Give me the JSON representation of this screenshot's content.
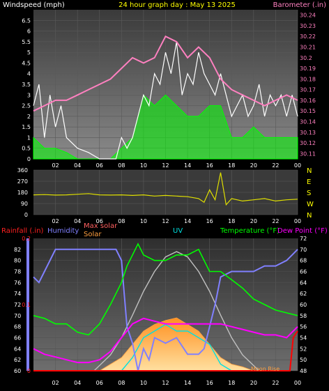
{
  "header": {
    "left_label": "Windspeed (mph)",
    "center_label": "24 hour graph day : May 13 2025",
    "right_label": "Barometer (.in)"
  },
  "colors": {
    "wind": "#ffffff",
    "gust": "#00ff00",
    "barometer": "#ff80c0",
    "direction": "#e0e000",
    "humidity": "#8080ff",
    "temperature": "#00ff00",
    "dewpoint": "#ff00ff",
    "uv": "#00e0e0",
    "rain": "#ff0000",
    "solar_max": "#c0c0c0",
    "solar": "#ffa040"
  },
  "chart_data": [
    {
      "type": "line",
      "name": "wind-barometer",
      "x_ticks": [
        "02",
        "04",
        "06",
        "08",
        "10",
        "12",
        "14",
        "16",
        "18",
        "20",
        "22",
        "00"
      ],
      "x_range": [
        0,
        24
      ],
      "left_axis": {
        "label": "Windspeed (mph)",
        "range": [
          0,
          7
        ],
        "ticks": [
          "0",
          "0.5",
          "1",
          "1.5",
          "2",
          "2.5",
          "3",
          "3.5",
          "4",
          "4.5",
          "5",
          "5.5",
          "6",
          "6.5"
        ]
      },
      "right_axis": {
        "label": "Barometer (.in)",
        "range": [
          30.105,
          30.245
        ],
        "ticks": [
          "30.11",
          "30.12",
          "30.13",
          "30.14",
          "30.15",
          "30.16",
          "30.17",
          "30.18",
          "30.19",
          "30.2",
          "30.21",
          "30.22",
          "30.23",
          "30.24"
        ]
      },
      "series": [
        {
          "name": "Windspeed",
          "x": [
            0,
            0.5,
            1,
            1.5,
            2,
            2.5,
            3,
            4,
            5,
            6,
            7,
            7.5,
            8,
            8.5,
            9,
            9.5,
            10,
            10.5,
            11,
            11.5,
            12,
            12.5,
            13,
            13.5,
            14,
            14.5,
            15,
            15.5,
            16,
            16.5,
            17,
            17.5,
            18,
            18.5,
            19,
            19.5,
            20,
            20.5,
            21,
            21.5,
            22,
            22.5,
            23,
            23.5,
            24
          ],
          "y": [
            2.5,
            3.5,
            1,
            3,
            1.5,
            2.5,
            1,
            0.5,
            0.3,
            0,
            0,
            0,
            1,
            0.5,
            1,
            2,
            3,
            2.5,
            4,
            3.5,
            5,
            4,
            5.5,
            3,
            4,
            3.5,
            5,
            4,
            3.5,
            3,
            4,
            3,
            2,
            2.5,
            3,
            2,
            2.5,
            3.5,
            2,
            3,
            2.5,
            3,
            2,
            3,
            2
          ]
        },
        {
          "name": "Gust",
          "x": [
            0,
            1,
            2,
            3,
            4,
            5,
            6,
            7,
            8,
            9,
            10,
            11,
            12,
            13,
            14,
            15,
            16,
            17,
            18,
            19,
            20,
            21,
            22,
            23,
            24
          ],
          "y": [
            1,
            0.5,
            0.5,
            0.3,
            0,
            0,
            0,
            0,
            0.5,
            1,
            3,
            2.5,
            3,
            2.5,
            2,
            2,
            2.5,
            2.5,
            1,
            1,
            1.5,
            1,
            1,
            1,
            1
          ]
        },
        {
          "name": "Barometer",
          "x": [
            0,
            1,
            2,
            3,
            4,
            5,
            6,
            7,
            8,
            9,
            10,
            11,
            12,
            13,
            14,
            15,
            16,
            17,
            18,
            19,
            20,
            21,
            22,
            23,
            24
          ],
          "y": [
            30.15,
            30.155,
            30.16,
            30.16,
            30.165,
            30.17,
            30.175,
            30.18,
            30.19,
            30.2,
            30.195,
            30.2,
            30.22,
            30.215,
            30.2,
            30.21,
            30.2,
            30.18,
            30.17,
            30.165,
            30.16,
            30.155,
            30.16,
            30.165,
            30.16
          ]
        }
      ]
    },
    {
      "type": "line",
      "name": "wind-direction",
      "x_ticks": [
        "02",
        "04",
        "06",
        "08",
        "10",
        "12",
        "14",
        "16",
        "18",
        "20",
        "22",
        "00"
      ],
      "x_range": [
        0,
        24
      ],
      "left_axis": {
        "range": [
          0,
          360
        ],
        "ticks": [
          "0",
          "90",
          "180",
          "270",
          "360"
        ]
      },
      "right_axis": {
        "ticks": [
          "N",
          "W",
          "S",
          "E",
          "N"
        ]
      },
      "series": [
        {
          "name": "Wind direction",
          "x": [
            0,
            1,
            2,
            3,
            4,
            5,
            6,
            7,
            8,
            9,
            10,
            11,
            12,
            13,
            14,
            15,
            15.5,
            16,
            16.5,
            17,
            17.5,
            18,
            19,
            20,
            21,
            22,
            23,
            24
          ],
          "y": [
            160,
            162,
            158,
            160,
            165,
            170,
            160,
            158,
            160,
            155,
            160,
            150,
            155,
            150,
            145,
            130,
            100,
            200,
            120,
            340,
            80,
            130,
            110,
            120,
            130,
            110,
            120,
            125
          ]
        }
      ]
    },
    {
      "type": "line",
      "name": "temp-humidity-solar",
      "x_ticks": [
        "02",
        "04",
        "06",
        "08",
        "10",
        "12",
        "14",
        "16",
        "18",
        "20",
        "22",
        "00"
      ],
      "x_range": [
        0,
        24
      ],
      "legend": [
        "Rainfall (.in)",
        "Humidity",
        "Max solar",
        "Solar",
        "UV",
        "Temperature (°F)",
        "Dew Point (°F)"
      ],
      "left_axis": {
        "label": "Humidity",
        "range": [
          60,
          84
        ],
        "ticks": [
          "60",
          "62",
          "64",
          "66",
          "68",
          "70",
          "72",
          "74",
          "76",
          "78",
          "80",
          "82"
        ]
      },
      "rain_axis": {
        "label": "Rainfall (.in)",
        "range": [
          0,
          0.2
        ],
        "ticks": [
          "0",
          "0.1",
          "0.2"
        ]
      },
      "right_axis": {
        "label": "Temperature (°F)",
        "range": [
          48,
          72
        ],
        "ticks": [
          "48",
          "50",
          "52",
          "54",
          "56",
          "58",
          "60",
          "62",
          "64",
          "66",
          "68",
          "70",
          "72"
        ]
      },
      "annotation": "Moon Rise",
      "series": [
        {
          "name": "Humidity",
          "x": [
            0,
            0.5,
            1,
            1.5,
            2,
            3,
            4,
            5,
            6,
            7,
            7.5,
            8,
            8.2,
            8.5,
            9,
            9.5,
            10,
            10.5,
            11,
            12,
            13,
            14,
            15,
            15.5,
            16,
            16.5,
            17,
            18,
            19,
            20,
            21,
            22,
            23,
            23.5,
            24
          ],
          "y": [
            77,
            76,
            78,
            80,
            82,
            82,
            82,
            82,
            82,
            82,
            82,
            80,
            75,
            68,
            65,
            60,
            64,
            62,
            66,
            65,
            66,
            63,
            63,
            64,
            68,
            72,
            77,
            78,
            78,
            78,
            79,
            79,
            80,
            81,
            82
          ]
        },
        {
          "name": "Temperature (°F)",
          "x": [
            0,
            1,
            2,
            3,
            4,
            5,
            6,
            7,
            8,
            8.5,
            9,
            9.5,
            10,
            11,
            12,
            13,
            14,
            15,
            16,
            17,
            18,
            19,
            20,
            21,
            22,
            23,
            24
          ],
          "y": [
            58,
            57.5,
            56.5,
            56.5,
            55,
            54.5,
            56.5,
            60,
            64,
            67,
            69,
            71,
            69,
            68,
            68,
            69,
            69,
            70,
            66,
            66,
            64.5,
            63,
            61,
            60,
            59,
            58.5,
            58
          ]
        },
        {
          "name": "Dew Point (°F)",
          "x": [
            0,
            1,
            2,
            3,
            4,
            5,
            6,
            7,
            8,
            9,
            10,
            11,
            12,
            13,
            14,
            15,
            16,
            17,
            18,
            19,
            20,
            21,
            22,
            23,
            24
          ],
          "y": [
            52,
            51,
            50.5,
            50,
            49.5,
            49.5,
            50,
            51.5,
            54,
            56.5,
            57.5,
            57,
            56.5,
            56.5,
            56.5,
            56.5,
            56.5,
            56.5,
            56,
            55.5,
            55,
            54.5,
            54.5,
            54,
            56
          ]
        },
        {
          "name": "Max solar",
          "x": [
            5.5,
            7,
            8,
            9,
            10,
            11,
            12,
            13,
            14,
            15,
            16,
            17,
            18,
            19,
            20.5
          ],
          "y": [
            0,
            0.12,
            0.25,
            0.42,
            0.6,
            0.75,
            0.86,
            0.9,
            0.86,
            0.75,
            0.6,
            0.42,
            0.25,
            0.12,
            0
          ]
        },
        {
          "name": "Solar",
          "x": [
            6,
            7,
            8,
            9,
            10,
            11,
            12,
            13,
            14,
            15,
            16,
            17,
            18,
            19,
            20
          ],
          "y": [
            0,
            0.05,
            0.1,
            0.2,
            0.3,
            0.35,
            0.38,
            0.4,
            0.35,
            0.3,
            0.2,
            0.1,
            0.05,
            0.03,
            0
          ]
        },
        {
          "name": "UV",
          "x": [
            8,
            9,
            10,
            11,
            12,
            13,
            14,
            15,
            16,
            17,
            18
          ],
          "y": [
            0,
            0.1,
            0.25,
            0.3,
            0.35,
            0.3,
            0.3,
            0.25,
            0.2,
            0.05,
            0
          ]
        },
        {
          "name": "Rainfall (.in)",
          "x": [
            0,
            23.3,
            23.6,
            24
          ],
          "y": [
            0,
            0,
            0.05,
            0.06
          ]
        }
      ]
    }
  ]
}
